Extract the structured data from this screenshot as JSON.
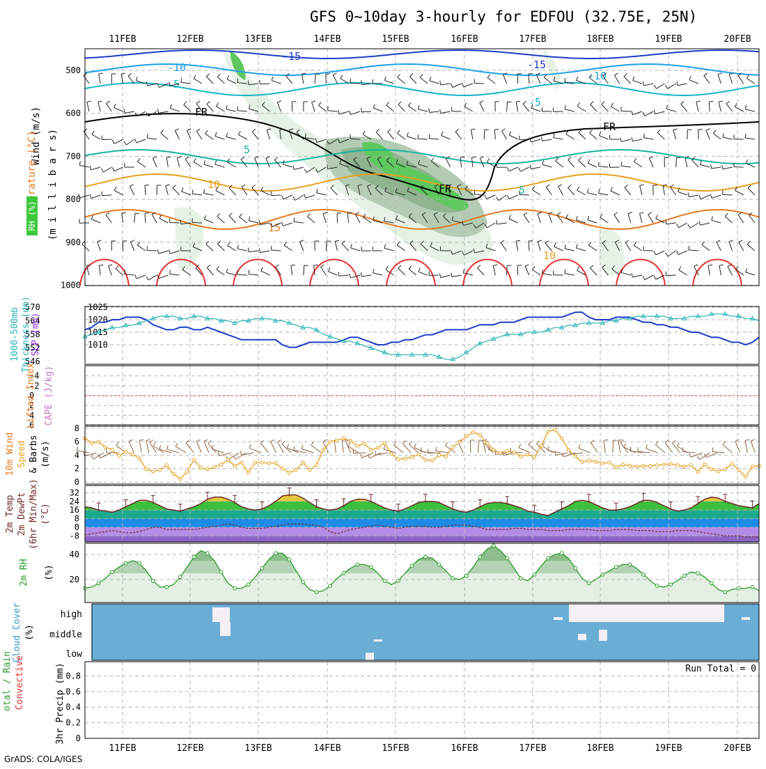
{
  "title": "GFS 0~10day 3-hourly for EDFOU (32.75E, 25N)",
  "credit": "GrADS: COLA/IGES",
  "colors": {
    "grid": "#b4b4b4",
    "rh_light": "#e6f2e6",
    "rh_mid": "#b4ccb4",
    "rh_dark": "#8fb48f",
    "rh_bright": "#5ec85e",
    "slp": "#1e3cc8",
    "thickness": "#28b4b4",
    "wind10m": "#e6a01e",
    "barb": "#8c6446",
    "rh2m": "#2a9a2a",
    "cloud_bg": "#6aaed6",
    "cloud_fill": "#f4f0f6",
    "lifted_zero": "#e03232",
    "temp_cold": "#1e3cc8",
    "temp_mid": "#14b4a0",
    "temp_warm": "#e6a01e",
    "temp_hot": "#e63232"
  },
  "chart_data": [
    {
      "id": "upper-air",
      "type": "line",
      "x_labels": [
        "11FEB",
        "12FEB",
        "13FEB",
        "14FEB",
        "15FEB",
        "16FEB",
        "17FEB",
        "18FEB",
        "19FEB",
        "20FEB"
      ],
      "y_ticks": [
        "500",
        "600",
        "700",
        "800",
        "900",
        "1000"
      ],
      "ylim": [
        450,
        1000
      ],
      "y_scale": "pressure",
      "ylabel_left": [
        "RH (%)",
        "Temperature (°C)",
        "Wind (m/s)"
      ],
      "ylabel_right": "(m i l l i b a r s)",
      "contour_labels": [
        "-15",
        "-10",
        "-5",
        "5",
        "10",
        "15",
        "FR",
        "-15",
        "-10",
        "-5",
        "FR",
        "5",
        "10",
        "FR"
      ],
      "grid": true
    },
    {
      "id": "slp-thickness",
      "type": "line",
      "ylabel_left": [
        "1000-500mb",
        "Thickness (dm)"
      ],
      "ylabel_right": "SLP (mb)",
      "y_ticks_left": [
        "570",
        "564",
        "558",
        "552",
        "546"
      ],
      "y_ticks_right": [
        "1025",
        "1020",
        "1015",
        "1010"
      ],
      "ylim_left": [
        546,
        570
      ],
      "ylim_right": [
        1006,
        1025
      ],
      "series": [
        {
          "values": [
            1016,
            1017,
            1019,
            1019,
            1020,
            1020,
            1021,
            1021,
            1021,
            1020,
            1018,
            1017,
            1016,
            1016,
            1017,
            1017,
            1016,
            1016,
            1017,
            1016,
            1015,
            1014,
            1013,
            1012,
            1012,
            1012,
            1012,
            1012,
            1012,
            1010,
            1009,
            1009,
            1010,
            1011,
            1011,
            1011,
            1011,
            1011,
            1012,
            1013,
            1013,
            1012,
            1011,
            1010,
            1010,
            1011,
            1011,
            1012,
            1012,
            1013,
            1014,
            1014,
            1015,
            1016,
            1016,
            1016,
            1016,
            1017,
            1018,
            1018,
            1018,
            1019,
            1019,
            1019,
            1020,
            1021,
            1021,
            1021,
            1021,
            1021,
            1021,
            1022,
            1023,
            1023,
            1021,
            1020,
            1020,
            1020,
            1021,
            1021,
            1021,
            1020,
            1019,
            1019,
            1018,
            1018,
            1017,
            1017,
            1016,
            1015,
            1015,
            1014,
            1013,
            1013,
            1012,
            1011,
            1011,
            1010,
            1011,
            1013
          ]
        },
        {
          "values": [
            557,
            558,
            559,
            560,
            561,
            561,
            562,
            562,
            563,
            564,
            565,
            566,
            566,
            566,
            565,
            565,
            566,
            566,
            565,
            565,
            564,
            564,
            563,
            564,
            564,
            565,
            565,
            565,
            564,
            564,
            563,
            562,
            561,
            561,
            560,
            558,
            557,
            556,
            555,
            555,
            554,
            553,
            552,
            551,
            550,
            549,
            549,
            549,
            549,
            549,
            549,
            549,
            548,
            547,
            547,
            548,
            550,
            552,
            554,
            555,
            556,
            557,
            558,
            558,
            558,
            559,
            559,
            559,
            560,
            561,
            561,
            562,
            562,
            563,
            563,
            563,
            563,
            564,
            564,
            565,
            565,
            566,
            566,
            566,
            566,
            566,
            565,
            565,
            565,
            566,
            566,
            566,
            567,
            567,
            567,
            566,
            566,
            565,
            565,
            564
          ]
        }
      ]
    },
    {
      "id": "lifted-cape",
      "type": "line",
      "ylabel_left": [
        "Lifted Index",
        "CAPE (J/kg)"
      ],
      "y_ticks": [
        "-4",
        "-2",
        "0",
        "2",
        "4",
        "6"
      ],
      "ylim": [
        -6,
        6
      ],
      "series": []
    },
    {
      "id": "wind10m",
      "type": "line",
      "ylabel_left": [
        "10m Wind",
        "Speed",
        "& Barbs",
        "(m/s)"
      ],
      "y_ticks": [
        "8",
        "6",
        "4",
        "2",
        "0"
      ],
      "ylim": [
        0,
        8.3
      ],
      "series": [
        {
          "values": [
            6.5,
            5.8,
            6,
            5.2,
            4.8,
            3.9,
            4.5,
            4.1,
            3.5,
            1.9,
            1.6,
            1.8,
            2.5,
            1.2,
            0.5,
            1.5,
            3.3,
            2.1,
            1.9,
            2.2,
            2.6,
            3.3,
            2.4,
            2.9,
            1.4,
            2.9,
            2.9,
            2.8,
            2.8,
            2,
            1.4,
            1.8,
            2.9,
            1.8,
            2.5,
            4.8,
            6,
            6.2,
            6.5,
            6.1,
            5.4,
            5.7,
            4.8,
            5.1,
            5.8,
            4.2,
            3.4,
            3.5,
            3.7,
            4.1,
            3.3,
            3.2,
            4,
            3.8,
            5.2,
            5.9,
            6.8,
            7.4,
            7,
            5.8,
            4.8,
            4.3,
            4.6,
            4.4,
            3.8,
            4.1,
            3.7,
            5.4,
            7.5,
            7.8,
            6.5,
            4.8,
            3.8,
            3,
            3.2,
            3,
            2.8,
            2.9,
            2.2,
            2.6,
            2.4,
            2.3,
            2.4,
            2.4,
            2.5,
            2.6,
            2.7,
            2.5,
            2.3,
            2.5,
            1.5,
            2.6,
            1.9,
            1.6,
            1.9,
            2.7,
            1.8,
            0.8,
            2.3,
            2.4
          ]
        }
      ]
    },
    {
      "id": "temp-dewpt",
      "type": "area",
      "ylabel_left": [
        "2m Temp",
        "2m DewPt",
        "(6hr Min/Max)",
        "(°C)"
      ],
      "y_ticks": [
        "32",
        "24",
        "16",
        "8",
        "0",
        "-8"
      ],
      "ylim": [
        -14,
        32
      ],
      "series": [
        {
          "values": [
            19,
            18,
            16,
            15,
            14,
            16,
            19,
            22,
            25,
            25,
            23,
            20,
            17,
            16,
            15,
            17,
            19,
            22,
            26,
            28,
            28,
            26,
            23,
            19,
            17,
            16,
            17,
            20,
            24,
            29,
            30,
            30,
            27,
            23,
            19,
            17,
            16,
            17,
            20,
            24,
            26,
            26,
            24,
            21,
            18,
            16,
            15,
            17,
            20,
            23,
            24,
            24,
            23,
            20,
            17,
            15,
            14,
            16,
            19,
            22,
            23,
            23,
            22,
            20,
            18,
            15,
            14,
            12,
            11,
            14,
            17,
            20,
            24,
            25,
            24,
            21,
            18,
            16,
            16,
            17,
            19,
            22,
            25,
            25,
            23,
            20,
            17,
            15,
            16,
            18,
            22,
            26,
            28,
            27,
            24,
            22,
            20,
            19,
            18,
            22
          ]
        },
        {
          "values": [
            -7,
            -6,
            -5,
            -4,
            -3,
            -4,
            -5,
            -5,
            -4,
            -2,
            0,
            0,
            -2,
            -2,
            -2,
            -2,
            -2,
            -1,
            0,
            1,
            2,
            3,
            2,
            0,
            -1,
            -1,
            -1,
            0,
            1,
            2,
            3,
            3,
            3,
            2,
            2,
            0,
            -4,
            -6,
            -4,
            -2,
            -1,
            0,
            1,
            2,
            1,
            0,
            -1,
            0,
            1,
            1,
            1,
            0,
            0,
            1,
            2,
            2,
            2,
            1,
            0,
            -2,
            -2,
            -2,
            -2,
            -1,
            -1,
            -2,
            -2,
            -2,
            -3,
            -3,
            -3,
            -2,
            -2,
            -2,
            -2,
            -3,
            -3,
            -3,
            -2,
            -2,
            -2,
            -3,
            -3,
            -3,
            -4,
            -4,
            -4,
            -3,
            -3,
            -3,
            -4,
            -5,
            -6,
            -7,
            -8,
            -8,
            -8,
            -9,
            -9,
            -9
          ]
        }
      ]
    },
    {
      "id": "rh2m",
      "type": "area",
      "ylabel_left": [
        "2m RH",
        "(%)"
      ],
      "y_ticks": [
        "40",
        "20"
      ],
      "ylim": [
        5,
        50
      ],
      "series": [
        {
          "values": [
            13,
            14,
            17,
            21,
            26,
            30,
            33,
            35,
            33,
            27,
            19,
            14,
            14,
            16,
            22,
            30,
            38,
            43,
            41,
            35,
            26,
            17,
            13,
            13,
            16,
            22,
            29,
            36,
            41,
            41,
            36,
            27,
            18,
            12,
            10,
            11,
            15,
            21,
            25,
            29,
            32,
            32,
            30,
            25,
            19,
            16,
            19,
            25,
            31,
            36,
            38,
            37,
            32,
            27,
            21,
            20,
            23,
            30,
            38,
            44,
            47,
            43,
            37,
            29,
            21,
            19,
            24,
            31,
            37,
            40,
            41,
            37,
            29,
            21,
            17,
            20,
            24,
            27,
            30,
            32,
            32,
            29,
            24,
            19,
            15,
            14,
            16,
            19,
            23,
            26,
            25,
            22,
            17,
            12,
            10,
            12,
            13,
            13,
            14,
            11
          ]
        }
      ]
    },
    {
      "id": "cloud-cover",
      "type": "heatmap",
      "ylabel_left": [
        "Cloud Cover",
        "(%)"
      ],
      "rows": [
        "high",
        "middle",
        "low"
      ]
    },
    {
      "id": "precip",
      "type": "bar",
      "ylabel_left": [
        "otal / Rain",
        "Convective",
        "3hr Precip (mm)"
      ],
      "y_ticks": [
        "0.8",
        "0.6",
        "0.4",
        "0.2",
        "0"
      ],
      "ylim": [
        0,
        1
      ],
      "run_total": "Run Total = 0",
      "x_labels": [
        "11FEB",
        "12FEB",
        "13FEB",
        "14FEB",
        "15FEB",
        "16FEB",
        "17FEB",
        "18FEB",
        "19FEB",
        "20FEB"
      ],
      "values": []
    }
  ]
}
